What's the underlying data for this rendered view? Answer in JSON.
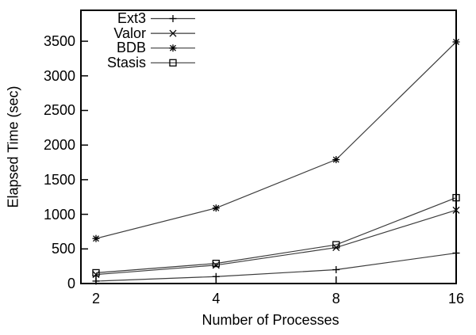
{
  "figure": {
    "background": "#ffffff",
    "axis_color": "#000000",
    "line_color": "#3c3c3c",
    "marker_color": "#000000"
  },
  "chart_data": {
    "type": "line",
    "title": "",
    "xlabel": "Number of Processes",
    "ylabel": "Elapsed Time (sec)",
    "x": [
      2,
      4,
      8,
      16
    ],
    "x_scale": "log2",
    "x_tick_labels": [
      "2",
      "4",
      "8",
      "16"
    ],
    "y_ticks": [
      0,
      500,
      1000,
      1500,
      2000,
      2500,
      3000,
      3500
    ],
    "ylim": [
      0,
      3947
    ],
    "grid": false,
    "legend_position": "top-left-inside",
    "series": [
      {
        "name": "Ext3",
        "marker": "plus",
        "values": [
          35,
          100,
          200,
          440
        ]
      },
      {
        "name": "Valor",
        "marker": "cross",
        "values": [
          130,
          265,
          520,
          1060
        ]
      },
      {
        "name": "BDB",
        "marker": "asterisk",
        "values": [
          650,
          1090,
          1790,
          3490
        ]
      },
      {
        "name": "Stasis",
        "marker": "square-open",
        "values": [
          155,
          290,
          560,
          1240
        ]
      }
    ]
  }
}
